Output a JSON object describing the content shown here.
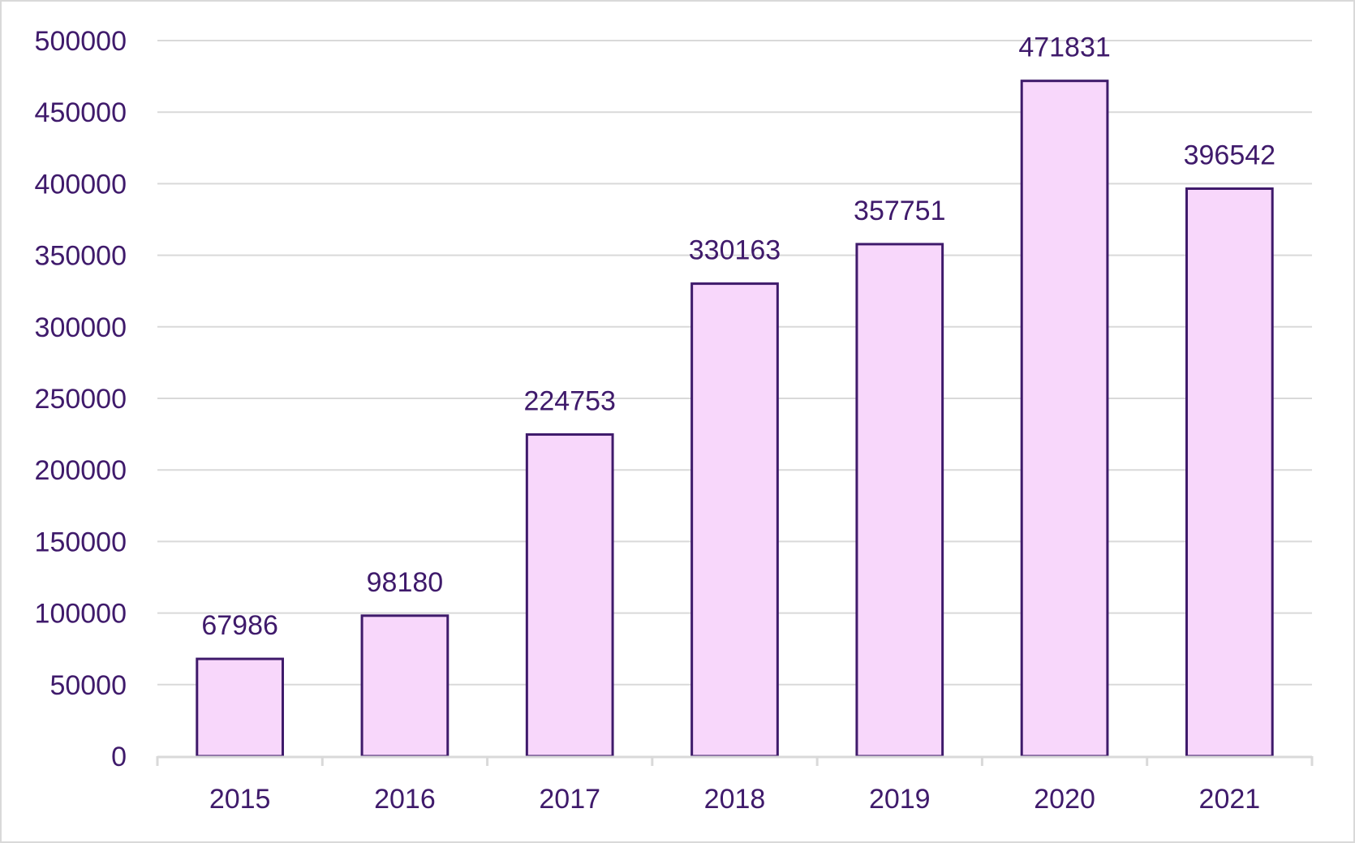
{
  "chart_data": {
    "type": "bar",
    "categories": [
      "2015",
      "2016",
      "2017",
      "2018",
      "2019",
      "2020",
      "2021"
    ],
    "values": [
      67986,
      98180,
      224753,
      330163,
      357751,
      471831,
      396542
    ],
    "data_labels": [
      "67986",
      "98180",
      "224753",
      "330163",
      "357751",
      "471831",
      "396542"
    ],
    "title": "",
    "xlabel": "",
    "ylabel": "",
    "ylim": [
      0,
      500000
    ],
    "yticks": [
      0,
      50000,
      100000,
      150000,
      200000,
      250000,
      300000,
      350000,
      400000,
      450000,
      500000
    ],
    "ytick_labels": [
      "0",
      "50000",
      "100000",
      "150000",
      "200000",
      "250000",
      "300000",
      "350000",
      "400000",
      "450000",
      "500000"
    ],
    "grid": true,
    "legend": "none",
    "colors": {
      "bar_fill": "#f8d7fb",
      "bar_stroke": "#3f1a6b",
      "gridline": "#d9d9d9",
      "text": "#3f1a6b",
      "axis": "#d9d9d9"
    }
  }
}
